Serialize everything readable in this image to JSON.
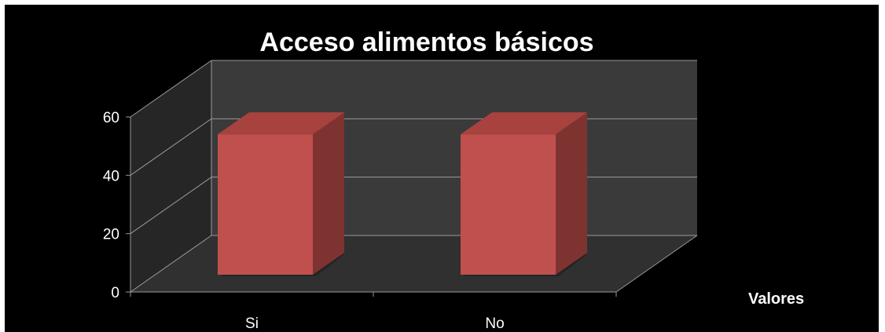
{
  "chart_data": {
    "type": "bar",
    "title": "Acceso alimentos básicos",
    "categories": [
      "Si",
      "No"
    ],
    "series": [
      {
        "name": "Valores",
        "values": [
          50,
          50
        ]
      }
    ],
    "ylim": [
      0,
      60
    ],
    "yticks": [
      0,
      20,
      40,
      60
    ],
    "grid": true,
    "legend": "right",
    "style": "3d-column",
    "colors": {
      "background": "#000000",
      "wall": "#3a3a3a",
      "floor": "#303030",
      "side_wall": "#262626",
      "grid": "#9a9a9a",
      "bar_front": "#c0504d",
      "bar_top": "#a8423f",
      "bar_side": "#7f3330"
    }
  }
}
